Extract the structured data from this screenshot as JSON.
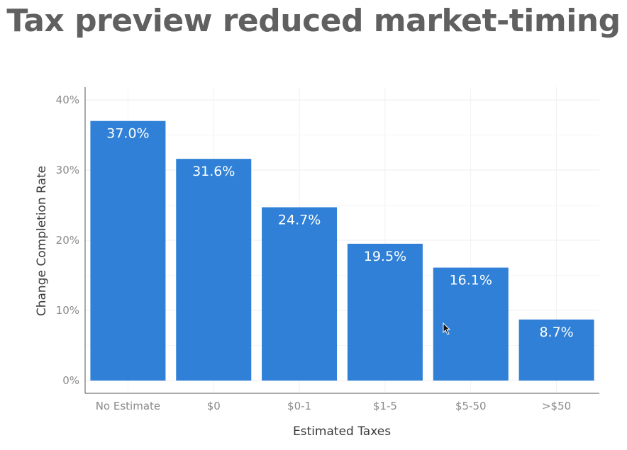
{
  "slide": {
    "title": "Tax preview reduced market-timing"
  },
  "chart_data": {
    "type": "bar",
    "categories": [
      "No Estimate",
      "$0",
      "$0-1",
      "$1-5",
      "$5-50",
      ">$50"
    ],
    "values": [
      37.0,
      31.6,
      24.7,
      19.5,
      16.1,
      8.7
    ],
    "data_labels": [
      "37.0%",
      "31.6%",
      "24.7%",
      "19.5%",
      "16.1%",
      "8.7%"
    ],
    "title": "",
    "xlabel": "Estimated Taxes",
    "ylabel": "Change Completion Rate",
    "ylim": [
      0,
      42
    ],
    "yticks": [
      0,
      10,
      20,
      30,
      40
    ],
    "ytick_labels": [
      "0%",
      "10%",
      "20%",
      "30%",
      "40%"
    ],
    "bar_color": "#2f80d6",
    "grid": true,
    "legend": "none"
  }
}
